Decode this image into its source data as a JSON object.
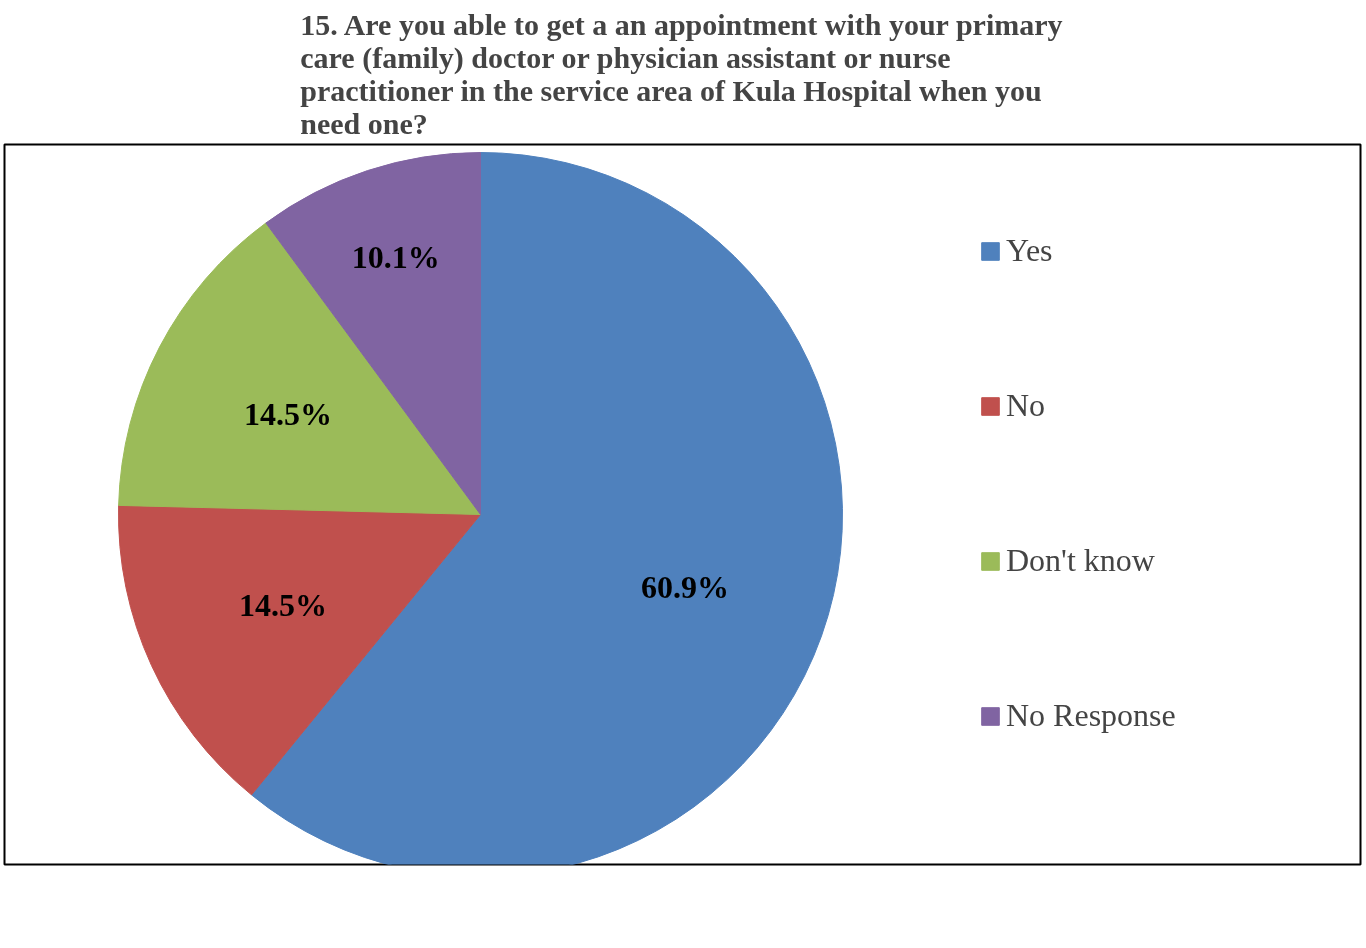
{
  "chart_data": {
    "type": "pie",
    "title": "15. Are you able to get a an appointment with your primary care (family) doctor or physician assistant or nurse practitioner in the service area of Kula Hospital when you need one?",
    "categories": [
      "Yes",
      "No",
      "Don't know",
      "No Response"
    ],
    "values": [
      60.9,
      14.5,
      14.5,
      10.1
    ],
    "colors": [
      "#4f81bd",
      "#c0504d",
      "#9bbb59",
      "#8064a2"
    ],
    "value_labels": [
      "60.9%",
      "14.5%",
      "14.5%",
      "10.1%"
    ],
    "legend": "right"
  }
}
